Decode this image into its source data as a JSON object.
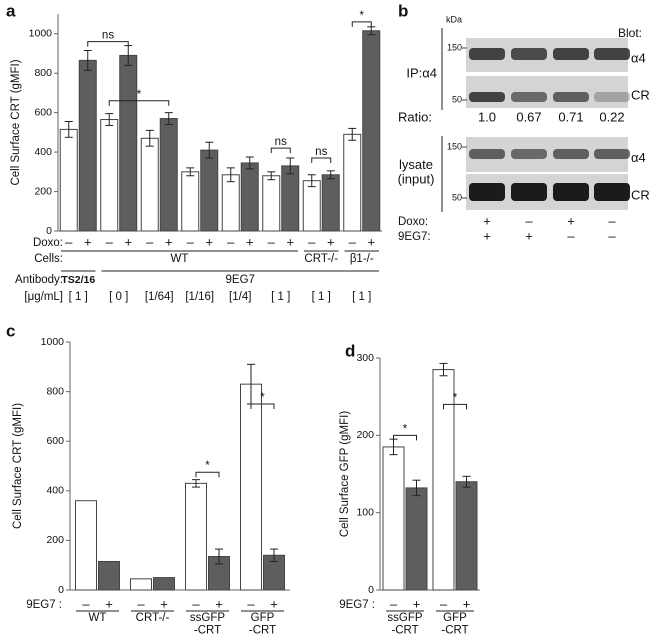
{
  "chart_data": [
    {
      "type": "bar",
      "label": "a",
      "y_label": "Cell Surface CRT (gMFI)",
      "ylim": [
        0,
        1100
      ],
      "yticks": [
        0,
        200,
        400,
        600,
        800,
        1000
      ],
      "series_label": "Doxo:",
      "series": [
        {
          "name": "–",
          "color": "#ffffff",
          "values": [
            515,
            565,
            470,
            300,
            285,
            280,
            255,
            490
          ],
          "errors": [
            40,
            30,
            40,
            20,
            35,
            20,
            30,
            30
          ]
        },
        {
          "name": "+",
          "color": "#5e5e5e",
          "values": [
            865,
            890,
            570,
            410,
            345,
            330,
            285,
            1015
          ],
          "errors": [
            50,
            50,
            30,
            40,
            30,
            40,
            20,
            20
          ]
        }
      ],
      "significance": [
        "ns",
        "*",
        "ns",
        "ns",
        "*"
      ],
      "cells": {
        "label": "Cells:",
        "groups": [
          "WT",
          "CRT-/-",
          "β1-/-"
        ]
      },
      "antibody": {
        "label": "Antibody:",
        "groups": [
          "TS2/16",
          "9EG7"
        ]
      },
      "categories_label": "[μg/mL]",
      "categories": [
        "[ 1 ]",
        "[ 0 ]",
        "[1/64]",
        "[1/16]",
        "[1/4]",
        "[ 1 ]",
        "[ 1 ]",
        "[ 1 ]"
      ]
    },
    {
      "type": "bar",
      "label": "c",
      "y_label": "Cell Surface CRT (gMFI)",
      "ylim": [
        0,
        1000
      ],
      "yticks": [
        0,
        200,
        400,
        600,
        800,
        1000
      ],
      "series_label": "9EG7 :",
      "series": [
        {
          "name": "–",
          "color": "#ffffff",
          "values": [
            360,
            45,
            430,
            830
          ],
          "errors": [
            null,
            null,
            15,
            80
          ]
        },
        {
          "name": "+",
          "color": "#5e5e5e",
          "values": [
            115,
            50,
            135,
            140
          ],
          "errors": [
            null,
            null,
            30,
            25
          ]
        }
      ],
      "significance": [
        "*",
        "*"
      ],
      "categories": [
        "WT",
        "CRT-/-",
        "ssGFP\n-CRT",
        "GFP\n-CRT"
      ]
    },
    {
      "type": "bar",
      "label": "d",
      "y_label": "Cell Surface GFP (gMFI)",
      "ylim": [
        0,
        300
      ],
      "yticks": [
        0,
        100,
        200,
        300
      ],
      "series_label": "9EG7 :",
      "series": [
        {
          "name": "–",
          "color": "#ffffff",
          "values": [
            185,
            285
          ],
          "errors": [
            10,
            8
          ]
        },
        {
          "name": "+",
          "color": "#5e5e5e",
          "values": [
            132,
            140
          ],
          "errors": [
            10,
            7
          ]
        }
      ],
      "significance": [
        "*",
        "*"
      ],
      "categories": [
        "ssGFP\n-CRT",
        "GFP\n-CRT"
      ]
    }
  ],
  "blot": {
    "label": "b",
    "units": "kDa",
    "header": "Blot:",
    "ip": {
      "label": "IP:α4",
      "rows": [
        {
          "marker": "150",
          "target": "α4"
        },
        {
          "marker": "50",
          "target": "CRT"
        }
      ]
    },
    "ratio": {
      "label": "Ratio:",
      "values": [
        "1.0",
        "0.67",
        "0.71",
        "0.22"
      ]
    },
    "lysate": {
      "label": "lysate\n(input)",
      "rows": [
        {
          "marker": "150",
          "target": "α4"
        },
        {
          "marker": "50",
          "target": "CRT"
        }
      ]
    },
    "conditions": [
      {
        "label": "Doxo:",
        "values": [
          "+",
          "–",
          "+",
          "–"
        ]
      },
      {
        "label": "9EG7:",
        "values": [
          "+",
          "+",
          "–",
          "–"
        ]
      }
    ]
  }
}
